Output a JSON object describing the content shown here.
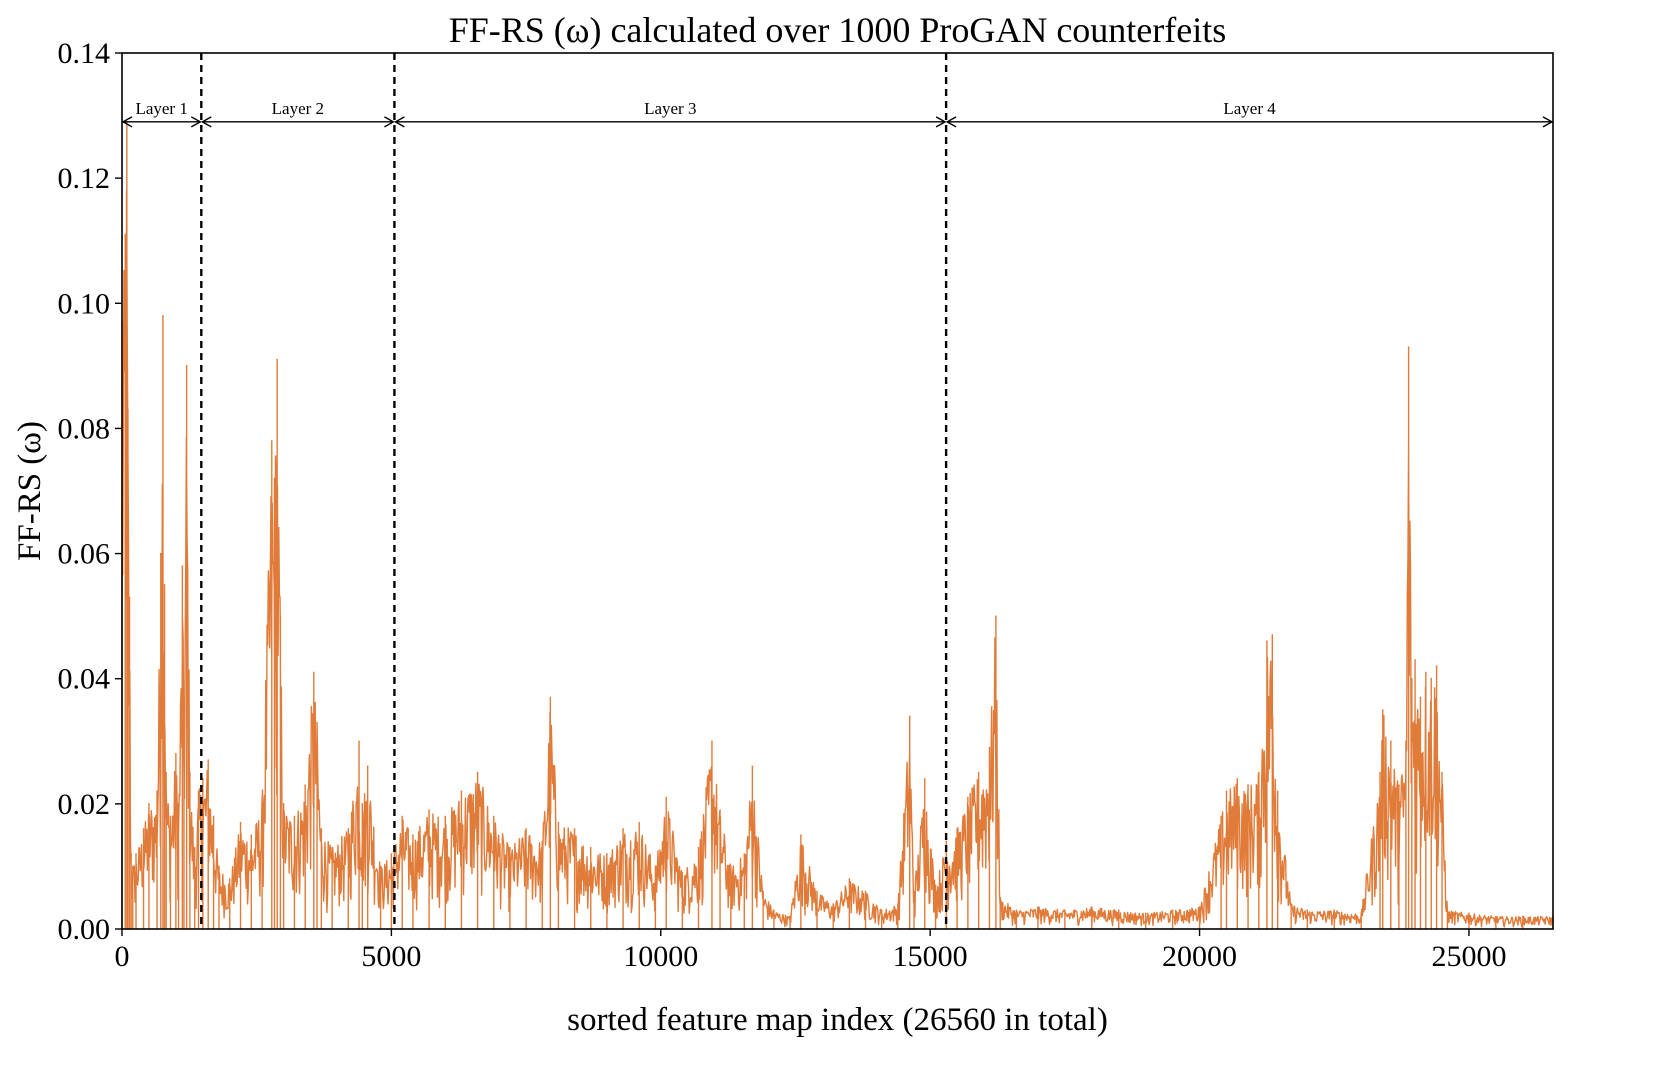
{
  "chart_data": {
    "type": "line",
    "title": "FF-RS (ω) calculated over 1000 ProGAN counterfeits",
    "xlabel": "sorted feature map index (26560 in total)",
    "ylabel": "FF-RS (ω)",
    "xlim": [
      0,
      26560
    ],
    "ylim": [
      0,
      0.14
    ],
    "x_ticks": [
      0,
      5000,
      10000,
      15000,
      20000,
      25000
    ],
    "x_tick_labels": [
      "0",
      "5000",
      "10000",
      "15000",
      "20000",
      "25000"
    ],
    "y_ticks": [
      0,
      0.02,
      0.04,
      0.06,
      0.08,
      0.1,
      0.12,
      0.14
    ],
    "y_tick_labels": [
      "0.00",
      "0.02",
      "0.04",
      "0.06",
      "0.08",
      "0.10",
      "0.12",
      "0.14"
    ],
    "grid": false,
    "line_color": "#e07b39",
    "boundary_color": "#000000",
    "layer_boundaries": [
      1472,
      5056,
      15296
    ],
    "layers": [
      {
        "label": "Layer 1",
        "start": 0,
        "end": 1472
      },
      {
        "label": "Layer 2",
        "start": 1472,
        "end": 5056
      },
      {
        "label": "Layer 3",
        "start": 5056,
        "end": 15296
      },
      {
        "label": "Layer 4",
        "start": 15296,
        "end": 26560
      }
    ],
    "layer_arrow_y": 0.129,
    "series": [
      {
        "values_description_free": true,
        "x": [
          0,
          60,
          90,
          110,
          140,
          170,
          200,
          260,
          400,
          500,
          650,
          720,
          760,
          790,
          820,
          900,
          1000,
          1050,
          1120,
          1150,
          1200,
          1260,
          1350,
          1420,
          1500,
          1600,
          1700,
          1800,
          2000,
          2200,
          2400,
          2600,
          2780,
          2830,
          2880,
          2940,
          3000,
          3200,
          3400,
          3560,
          3620,
          3700,
          3900,
          4200,
          4400,
          4460,
          4560,
          4800,
          5000,
          5200,
          5400,
          5700,
          6000,
          6300,
          6600,
          6900,
          7200,
          7500,
          7800,
          7950,
          8100,
          8400,
          8700,
          9000,
          9300,
          9600,
          9900,
          10100,
          10400,
          10700,
          10950,
          11100,
          11300,
          11550,
          11700,
          11900,
          12100,
          12400,
          12600,
          12900,
          13200,
          13500,
          13800,
          14100,
          14400,
          14620,
          14700,
          14900,
          15100,
          15300,
          15500,
          15700,
          15900,
          16100,
          16220,
          16300,
          16600,
          17000,
          17500,
          18000,
          18500,
          19000,
          19500,
          20000,
          20400,
          20500,
          20700,
          20900,
          21100,
          21250,
          21350,
          21450,
          21700,
          22000,
          22500,
          23000,
          23350,
          23400,
          23550,
          23700,
          23830,
          23880,
          23940,
          24000,
          24100,
          24200,
          24300,
          24400,
          24500,
          24600,
          25000,
          25500,
          26000,
          26560
        ],
        "y": [
          0.097,
          0.111,
          0.129,
          0.083,
          0.053,
          0.012,
          0.01,
          0.012,
          0.016,
          0.02,
          0.022,
          0.06,
          0.098,
          0.055,
          0.025,
          0.018,
          0.028,
          0.02,
          0.058,
          0.035,
          0.09,
          0.025,
          0.013,
          0.022,
          0.024,
          0.027,
          0.018,
          0.01,
          0.008,
          0.017,
          0.015,
          0.02,
          0.078,
          0.072,
          0.091,
          0.05,
          0.02,
          0.018,
          0.023,
          0.041,
          0.033,
          0.016,
          0.013,
          0.016,
          0.03,
          0.02,
          0.026,
          0.01,
          0.012,
          0.018,
          0.015,
          0.019,
          0.018,
          0.022,
          0.025,
          0.018,
          0.013,
          0.016,
          0.014,
          0.037,
          0.017,
          0.016,
          0.013,
          0.012,
          0.016,
          0.017,
          0.01,
          0.021,
          0.009,
          0.013,
          0.03,
          0.019,
          0.01,
          0.012,
          0.026,
          0.006,
          0.003,
          0.002,
          0.015,
          0.006,
          0.004,
          0.008,
          0.006,
          0.003,
          0.004,
          0.034,
          0.006,
          0.024,
          0.007,
          0.014,
          0.016,
          0.021,
          0.025,
          0.029,
          0.05,
          0.005,
          0.003,
          0.0035,
          0.003,
          0.0035,
          0.003,
          0.0025,
          0.003,
          0.0035,
          0.018,
          0.022,
          0.024,
          0.023,
          0.025,
          0.046,
          0.047,
          0.022,
          0.004,
          0.003,
          0.003,
          0.0025,
          0.025,
          0.035,
          0.03,
          0.023,
          0.03,
          0.093,
          0.04,
          0.043,
          0.037,
          0.041,
          0.04,
          0.042,
          0.025,
          0.003,
          0.0025,
          0.002,
          0.002,
          0.002
        ]
      }
    ]
  }
}
